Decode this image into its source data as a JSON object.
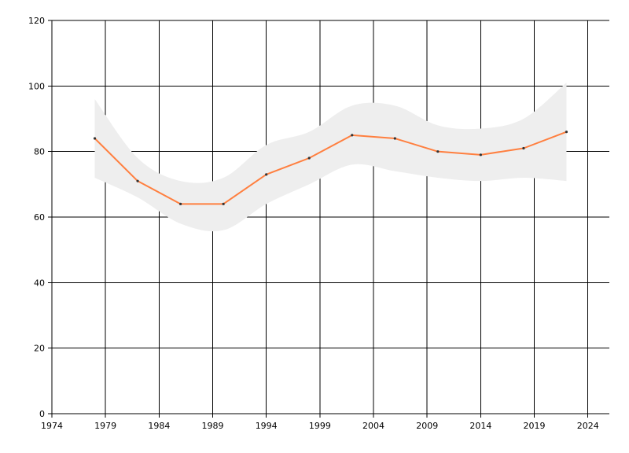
{
  "chart_data": {
    "type": "line",
    "title": "",
    "xlabel": "",
    "ylabel": "",
    "xlim": [
      1974,
      2026
    ],
    "ylim": [
      0,
      120
    ],
    "x_ticks": [
      1974,
      1979,
      1984,
      1989,
      1994,
      1999,
      2004,
      2009,
      2014,
      2019,
      2024
    ],
    "y_ticks": [
      0,
      20,
      40,
      60,
      80,
      100,
      120
    ],
    "grid": true,
    "legend": "none",
    "series": [
      {
        "color": "#ff7f3f",
        "x": [
          1978,
          1982,
          1986,
          1990,
          1994,
          1998,
          2002,
          2006,
          2010,
          2014,
          2018,
          2022
        ],
        "y": [
          84,
          71,
          64,
          64,
          73,
          78,
          85,
          84,
          80,
          79,
          81,
          86
        ]
      }
    ],
    "band": {
      "color": "#eeeeee",
      "x": [
        1978,
        1982,
        1986,
        1990,
        1994,
        1998,
        2002,
        2006,
        2010,
        2014,
        2018,
        2022
      ],
      "lower": [
        72,
        66,
        58,
        56,
        64,
        70,
        76,
        74,
        72,
        71,
        72,
        71
      ],
      "upper": [
        96,
        78,
        71,
        72,
        82,
        86,
        94,
        94,
        88,
        87,
        90,
        101
      ]
    }
  }
}
